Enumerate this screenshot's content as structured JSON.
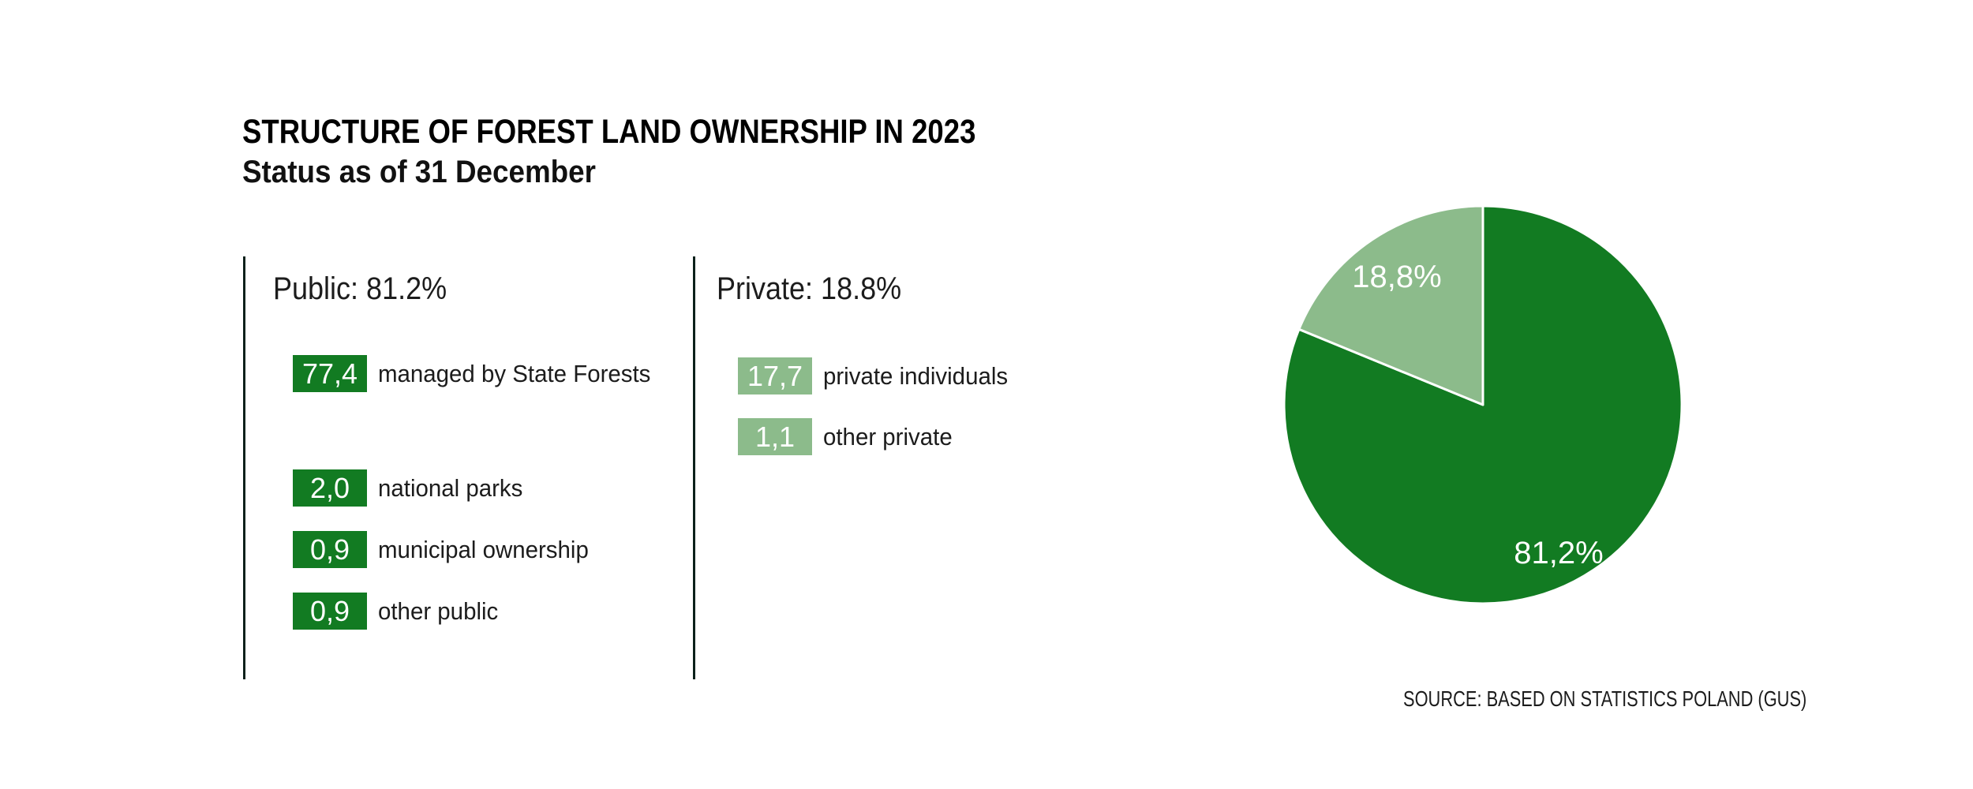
{
  "title": "STRUCTURE OF FOREST LAND OWNERSHIP IN 2023",
  "subtitle": "Status as of 31 December",
  "panels": {
    "public": {
      "header": "Public: 81.2%",
      "items": [
        {
          "value": "77,4",
          "label": "managed by State Forests"
        },
        {
          "value": "2,0",
          "label": "national parks"
        },
        {
          "value": "0,9",
          "label": "municipal ownership"
        },
        {
          "value": "0,9",
          "label": "other public"
        }
      ]
    },
    "private": {
      "header": "Private: 18.8%",
      "items": [
        {
          "value": "17,7",
          "label": "private individuals"
        },
        {
          "value": "1,1",
          "label": "other private"
        }
      ]
    }
  },
  "source": "SOURCE: BASED ON STATISTICS POLAND (GUS)",
  "colors": {
    "dark_green": "#127b22",
    "light_green": "#8cbb8b",
    "divider": "#0c211b",
    "text": "#1c1c1c"
  },
  "chart_data": {
    "type": "pie",
    "title": "Structure of forest land ownership in 2023",
    "legend_position": "none",
    "start_angle_deg": 0,
    "direction": "clockwise",
    "slices": [
      {
        "label": "Public",
        "value": 81.2,
        "display": "81,2%",
        "color": "#127b22"
      },
      {
        "label": "Private",
        "value": 18.8,
        "display": "18,8%",
        "color": "#8cbb8b"
      }
    ]
  }
}
